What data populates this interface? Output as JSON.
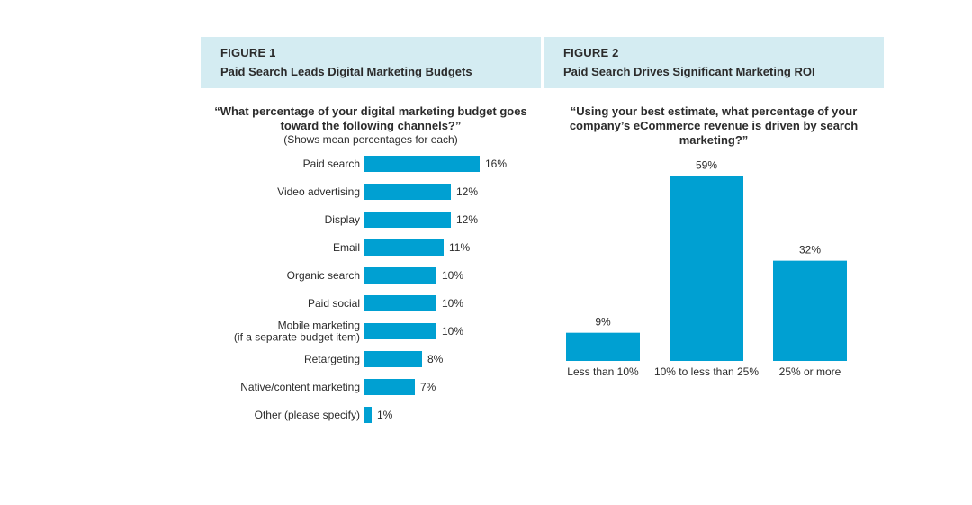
{
  "figure1": {
    "label": "FIGURE 1",
    "title": "Paid Search Leads Digital Marketing Budgets",
    "question": "“What percentage of your digital marketing budget goes toward the following channels?”",
    "subtitle": "(Shows mean percentages for each)"
  },
  "figure2": {
    "label": "FIGURE 2",
    "title": "Paid Search Drives Significant Marketing ROI",
    "question": "“Using your best estimate, what percentage of your company’s eCommerce revenue is driven by search marketing?”"
  },
  "colors": {
    "bar": "#00a0d2",
    "header_bg": "#d4ecf2"
  },
  "chart_data": [
    {
      "type": "bar",
      "orientation": "horizontal",
      "categories": [
        [
          "Paid search"
        ],
        [
          "Video advertising"
        ],
        [
          "Display"
        ],
        [
          "Email"
        ],
        [
          "Organic search"
        ],
        [
          "Paid social"
        ],
        [
          "Mobile marketing",
          "(if a separate budget item)"
        ],
        [
          "Retargeting"
        ],
        [
          "Native/content marketing"
        ],
        [
          "Other (please specify)"
        ]
      ],
      "values": [
        16,
        12,
        12,
        11,
        10,
        10,
        10,
        8,
        7,
        1
      ],
      "value_labels": [
        "16%",
        "12%",
        "12%",
        "11%",
        "10%",
        "10%",
        "10%",
        "8%",
        "7%",
        "1%"
      ],
      "unit": "%"
    },
    {
      "type": "bar",
      "orientation": "vertical",
      "categories": [
        "Less than 10%",
        "10% to less than 25%",
        "25% or more"
      ],
      "values": [
        9,
        59,
        32
      ],
      "value_labels": [
        "9%",
        "59%",
        "32%"
      ],
      "unit": "%"
    }
  ]
}
